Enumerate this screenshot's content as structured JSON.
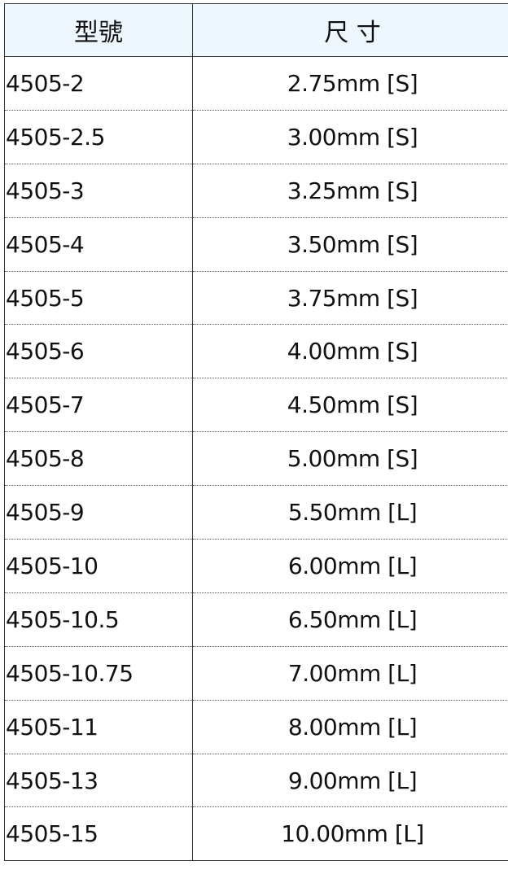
{
  "header": {
    "model": "型號",
    "size": "尺 寸"
  },
  "rows": [
    {
      "model": "4505-2",
      "size": "2.75mm [S]"
    },
    {
      "model": "4505-2.5",
      "size": "3.00mm [S]"
    },
    {
      "model": "4505-3",
      "size": "3.25mm [S]"
    },
    {
      "model": "4505-4",
      "size": "3.50mm [S]"
    },
    {
      "model": "4505-5",
      "size": "3.75mm [S]"
    },
    {
      "model": "4505-6",
      "size": "4.00mm [S]"
    },
    {
      "model": "4505-7",
      "size": "4.50mm [S]"
    },
    {
      "model": "4505-8",
      "size": "5.00mm [S]"
    },
    {
      "model": "4505-9",
      "size": "5.50mm [L]"
    },
    {
      "model": "4505-10",
      "size": "6.00mm [L]"
    },
    {
      "model": "4505-10.5",
      "size": "6.50mm [L]"
    },
    {
      "model": "4505-10.75",
      "size": "7.00mm [L]"
    },
    {
      "model": "4505-11",
      "size": "8.00mm [L]"
    },
    {
      "model": "4505-13",
      "size": "9.00mm [L]"
    },
    {
      "model": "4505-15",
      "size": "10.00mm [L]"
    }
  ],
  "colors": {
    "header_bg": "#eef6fe",
    "border": "#333333"
  }
}
